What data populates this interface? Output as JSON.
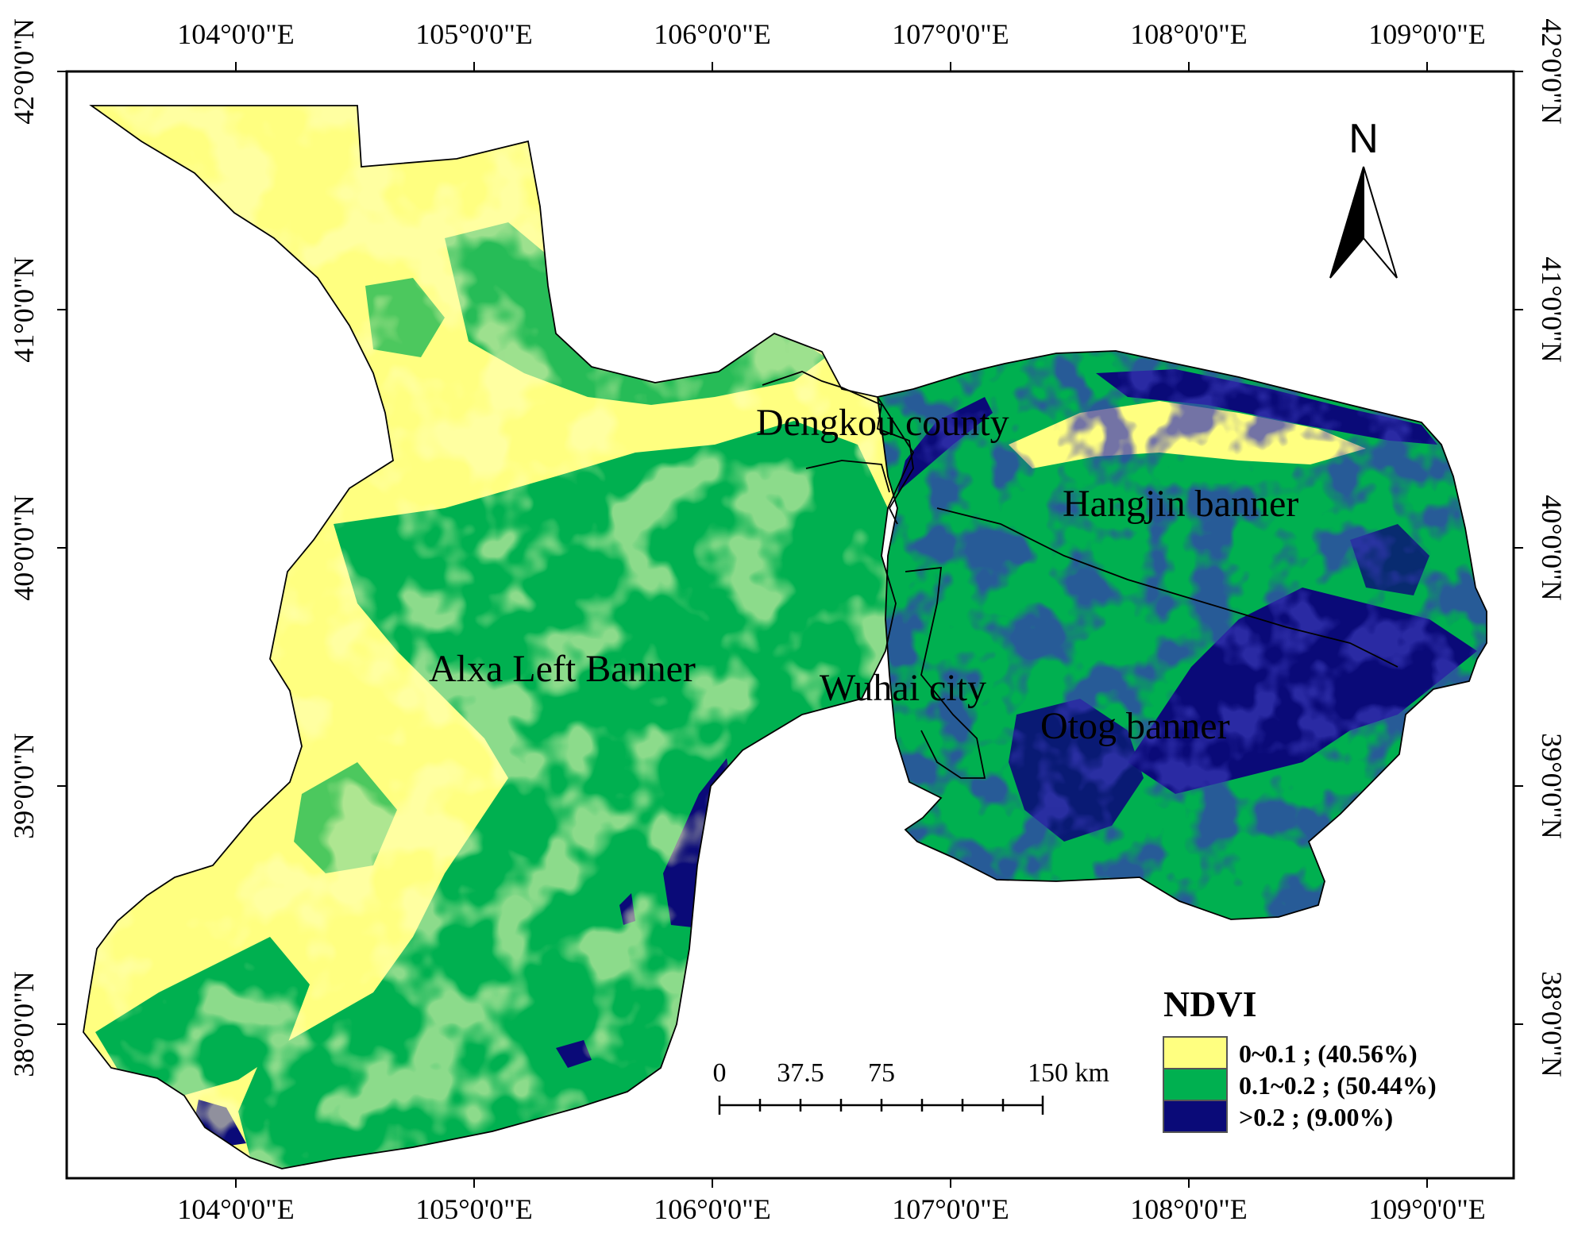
{
  "map": {
    "longitude_labels": [
      "104°0'0\"E",
      "105°0'0\"E",
      "106°0'0\"E",
      "107°0'0\"E",
      "108°0'0\"E",
      "109°0'0\"E"
    ],
    "latitude_labels": [
      "42°0'0\"N",
      "41°0'0\"N",
      "40°0'0\"N",
      "39°0'0\"N",
      "38°0'0\"N"
    ],
    "regions": {
      "dengkou": "Dengkou county",
      "hangjin": "Hangjin banner",
      "alxa": "Alxa Left Banner",
      "wuhai": "Wuhai city",
      "otog": "Otog banner"
    },
    "north_arrow": {
      "label": "N",
      "icon": "north-arrow-icon"
    },
    "scale_bar": {
      "labels": [
        "0",
        "37.5",
        "75",
        "150 km"
      ]
    },
    "legend": {
      "title": "NDVI",
      "items": [
        {
          "label": "0~0.1 ; (40.56%)",
          "color": "#ffff80",
          "share_percent": 40.56
        },
        {
          "label": "0.1~0.2 ; (50.44%)",
          "color": "#00b050",
          "share_percent": 50.44
        },
        {
          "label": ">0.2 ; (9.00%)",
          "color": "#0a0a78",
          "share_percent": 9.0
        }
      ]
    },
    "colors": {
      "low": "#ffff80",
      "mid": "#00b050",
      "high": "#0a0a78",
      "border": "#000000"
    }
  }
}
